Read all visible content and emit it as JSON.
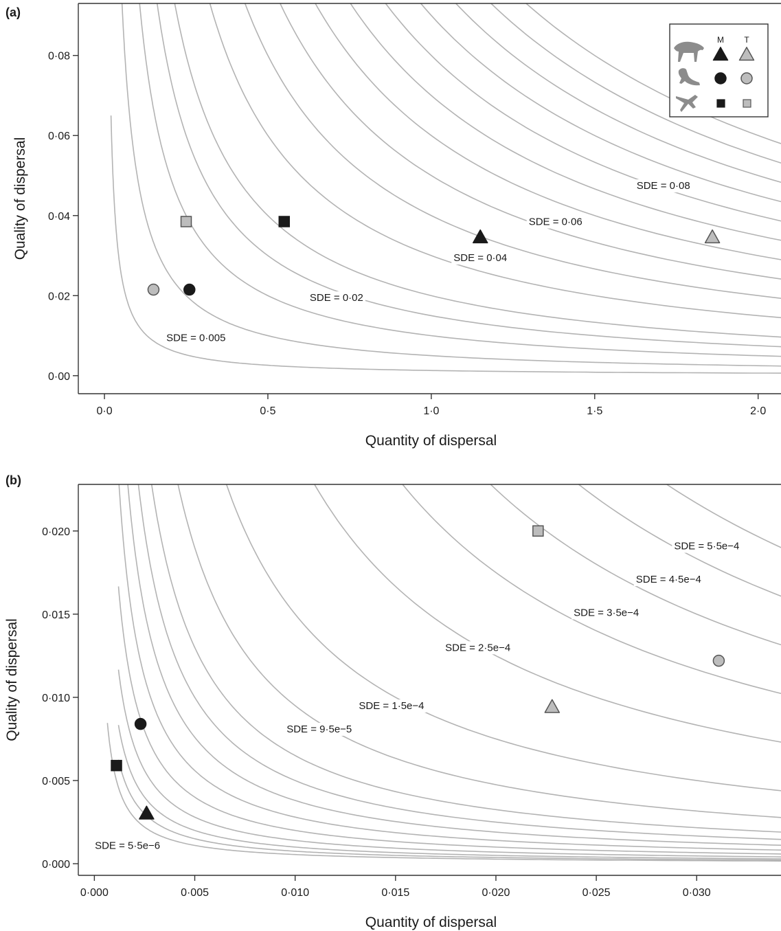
{
  "chart_data": [
    {
      "panel": "(a)",
      "type": "scatter",
      "xlabel": "Quantity of dispersal",
      "ylabel": "Quality of dispersal",
      "xlim": [
        -0.08,
        2.07
      ],
      "ylim": [
        -0.0045,
        0.093
      ],
      "x_ticks": [
        0.0,
        0.5,
        1.0,
        1.5,
        2.0
      ],
      "x_tick_labels": [
        "0·0",
        "0·5",
        "1·0",
        "1·5",
        "2·0"
      ],
      "y_ticks": [
        0.0,
        0.02,
        0.04,
        0.06,
        0.08
      ],
      "y_tick_labels": [
        "0·00",
        "0·02",
        "0·04",
        "0·06",
        "0·08"
      ],
      "grid": false,
      "contour_levels": [
        0.0013,
        0.005,
        0.01,
        0.015,
        0.02,
        0.03,
        0.04,
        0.05,
        0.06,
        0.07,
        0.08,
        0.09,
        0.1,
        0.11,
        0.12
      ],
      "contour_x_start": [
        0.02,
        0.05,
        0.05,
        0.05,
        0.05,
        0.05,
        0.05,
        0.05,
        0.05,
        0.05,
        0.05,
        0.05,
        0.05,
        0.05,
        0.05
      ],
      "contour_labels": [
        {
          "text": "SDE = 0·005",
          "x": 0.28,
          "y": 0.0095
        },
        {
          "text": "SDE = 0·02",
          "x": 0.71,
          "y": 0.0195
        },
        {
          "text": "SDE = 0·04",
          "x": 1.15,
          "y": 0.0295
        },
        {
          "text": "SDE = 0·06",
          "x": 1.38,
          "y": 0.0385
        },
        {
          "text": "SDE = 0·08",
          "x": 1.71,
          "y": 0.0475
        }
      ],
      "points": [
        {
          "x": 0.25,
          "y": 0.0385,
          "shape": "square",
          "group": "T"
        },
        {
          "x": 0.55,
          "y": 0.0385,
          "shape": "square",
          "group": "M"
        },
        {
          "x": 0.15,
          "y": 0.0215,
          "shape": "circle",
          "group": "T"
        },
        {
          "x": 0.26,
          "y": 0.0215,
          "shape": "circle",
          "group": "M"
        },
        {
          "x": 1.15,
          "y": 0.0345,
          "shape": "triangle",
          "group": "M"
        },
        {
          "x": 1.86,
          "y": 0.0345,
          "shape": "triangle",
          "group": "T"
        }
      ],
      "legend": {
        "placement": "top-right",
        "columns": [
          "M",
          "T"
        ],
        "rows": [
          {
            "icon": "fox-icon",
            "shape": "triangle"
          },
          {
            "icon": "marten-icon",
            "shape": "circle"
          },
          {
            "icon": "bird-icon",
            "shape": "square"
          }
        ]
      }
    },
    {
      "panel": "(b)",
      "type": "scatter",
      "xlabel": "Quantity of dispersal",
      "ylabel": "Quality of dispersal",
      "xlim": [
        -0.0008,
        0.0342
      ],
      "ylim": [
        -0.0007,
        0.0228
      ],
      "x_ticks": [
        0.0,
        0.005,
        0.01,
        0.015,
        0.02,
        0.025,
        0.03
      ],
      "x_tick_labels": [
        "0·000",
        "0·005",
        "0·010",
        "0·015",
        "0·020",
        "0·025",
        "0·030"
      ],
      "y_ticks": [
        0.0,
        0.005,
        0.01,
        0.015,
        0.02
      ],
      "y_tick_labels": [
        "0·000",
        "0·005",
        "0·010",
        "0·015",
        "0·020"
      ],
      "grid": false,
      "contour_levels": [
        5.5e-06,
        7.5e-06,
        1e-05,
        1.4e-05,
        2e-05,
        2.8e-05,
        3.8e-05,
        5e-05,
        6.5e-05,
        9.5e-05,
        0.00015,
        0.00025,
        0.00035,
        0.00045,
        0.00055,
        0.00065
      ],
      "contour_x_start": [
        0.00065,
        0.0012,
        0.0012,
        0.0012,
        0.0012,
        0.0012,
        0.0012,
        0.0012,
        0.0012,
        0.0012,
        0.0012,
        0.0012,
        0.0012,
        0.0012,
        0.0012,
        0.0012
      ],
      "contour_labels": [
        {
          "text": "SDE = 5·5e−6",
          "x": 0.00165,
          "y": 0.0011
        },
        {
          "text": "SDE = 9·5e−5",
          "x": 0.0112,
          "y": 0.0081
        },
        {
          "text": "SDE = 1·5e−4",
          "x": 0.0148,
          "y": 0.0095
        },
        {
          "text": "SDE = 2·5e−4",
          "x": 0.0191,
          "y": 0.013
        },
        {
          "text": "SDE = 3·5e−4",
          "x": 0.0255,
          "y": 0.0151
        },
        {
          "text": "SDE = 4·5e−4",
          "x": 0.0286,
          "y": 0.0171
        },
        {
          "text": "SDE = 5·5e−4",
          "x": 0.0305,
          "y": 0.0191
        }
      ],
      "points": [
        {
          "x": 0.0221,
          "y": 0.02,
          "shape": "square",
          "group": "T"
        },
        {
          "x": 0.0011,
          "y": 0.0059,
          "shape": "square",
          "group": "M"
        },
        {
          "x": 0.0311,
          "y": 0.0122,
          "shape": "circle",
          "group": "T"
        },
        {
          "x": 0.0023,
          "y": 0.0084,
          "shape": "circle",
          "group": "M"
        },
        {
          "x": 0.0228,
          "y": 0.0094,
          "shape": "triangle",
          "group": "T"
        },
        {
          "x": 0.0026,
          "y": 0.003,
          "shape": "triangle",
          "group": "M"
        }
      ]
    }
  ],
  "colors": {
    "contour": "#b3b3b3",
    "M_fill": "#1a1a1a",
    "T_fill": "#bdbdbd",
    "T_stroke": "#555555",
    "axis": "#333333",
    "silhouette": "#8c8c8c"
  }
}
